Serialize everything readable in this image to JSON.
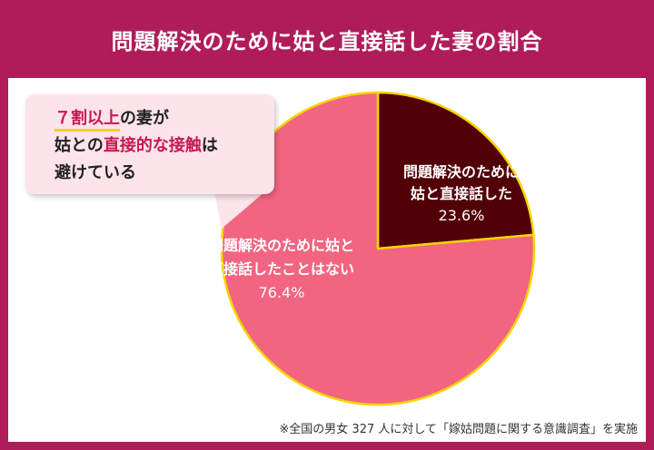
{
  "header": {
    "title": "問題解決のために姑と直接話した妻の割合"
  },
  "callout": {
    "line1_num": "７割以上",
    "line1_rest": "の妻が",
    "line2_pre": "姑との",
    "line2_hl": "直接的な接触",
    "line2_post": "は",
    "line3": "避けている"
  },
  "chart_data": {
    "type": "pie",
    "title": "問題解決のために姑と直接話した妻の割合",
    "slices": [
      {
        "label_line1": "問題解決のために",
        "label_line2": "姑と直接話した",
        "value": 23.6,
        "value_label": "23.6%",
        "color": "#520008"
      },
      {
        "label_line1": "問題解決のために姑と",
        "label_line2": "直接話したことはない",
        "value": 76.4,
        "value_label": "76.4%",
        "color": "#f26580"
      }
    ],
    "outline_color": "#f5d400"
  },
  "footnote": "※全国の男女 327 人に対して「嫁姑問題に関する意識調査」を実施",
  "colors": {
    "header_bg": "#b01c5a",
    "accent": "#c8174f",
    "underline": "#f3d21c",
    "callout_bg": "#fde3ea"
  }
}
